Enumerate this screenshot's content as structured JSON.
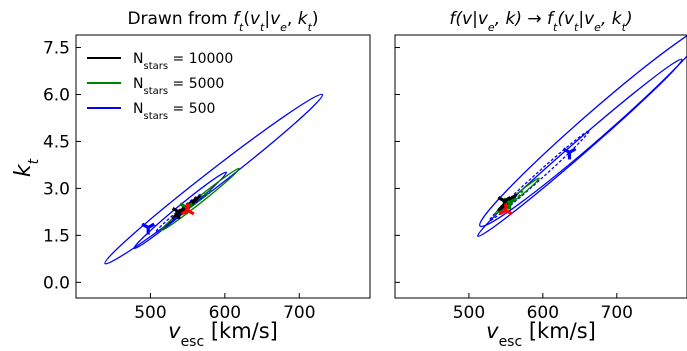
{
  "chart_data": [
    {
      "type": "contour",
      "title": "Drawn from f_t(v_t|v_e, k_t)",
      "title_parts": {
        "prefix": "Drawn from ",
        "f": "f",
        "f_sub": "t",
        "args_open": "(",
        "v": "v",
        "v_sub": "t",
        "bar": "|",
        "ve": "v",
        "ve_sub": "e",
        "comma": ", ",
        "k": "k",
        "k_sub": "t",
        "args_close": ")"
      },
      "xlabel": "v_esc [km/s]",
      "ylabel": "k_t",
      "xlim": [
        400,
        795
      ],
      "ylim": [
        -0.5,
        7.9
      ],
      "xticks": [
        500,
        600,
        700
      ],
      "yticks": [
        0.0,
        1.5,
        3.0,
        4.5,
        6.0,
        7.5
      ],
      "legend": {
        "position": "top-left",
        "entries": [
          {
            "label_main": "N",
            "label_sub": "stars",
            "label_rest": " = 10000",
            "color": "#000000"
          },
          {
            "label_main": "N",
            "label_sub": "stars",
            "label_rest": " = 5000",
            "color": "#008000"
          },
          {
            "label_main": "N",
            "label_sub": "stars",
            "label_rest": " = 500",
            "color": "#0000ff"
          }
        ]
      },
      "series": [
        {
          "name": "N_stars = 500",
          "color": "#0000ff",
          "contours": [
            {
              "center": [
                585,
                3.3
              ],
              "tip_lo": [
                440,
                0.6
              ],
              "tip_hi": [
                732,
                6.0
              ],
              "half_width": 0.34
            },
            {
              "center": [
                540,
                2.3
              ],
              "tip_lo": [
                488,
                1.22
              ],
              "tip_hi": [
                612,
                3.65
              ],
              "half_width": 0.17
            },
            {
              "center": [
                537,
                2.2
              ],
              "tip_lo": [
                507,
                1.6
              ],
              "tip_hi": [
                567,
                2.8
              ],
              "half_width": 0.08
            }
          ],
          "best_fit": [
            497,
            1.75
          ],
          "true_marker": null
        },
        {
          "name": "N_stars = 5000",
          "color": "#008000",
          "contours": [
            {
              "center": [
                567,
                2.65
              ],
              "tip_lo": [
                515,
                1.72
              ],
              "tip_hi": [
                620,
                3.7
              ],
              "half_width": 0.12
            },
            {
              "center": [
                560,
                2.55
              ],
              "tip_lo": [
                538,
                2.15
              ],
              "tip_hi": [
                583,
                2.95
              ],
              "half_width": 0.05
            }
          ],
          "best_fit": [
            548,
            2.4
          ],
          "true_marker": null
        },
        {
          "name": "N_stars = 10000",
          "color": "#000000",
          "contours": [
            {
              "center": [
                548,
                2.4
              ],
              "tip_lo": [
                530,
                2.05
              ],
              "tip_hi": [
                567,
                2.75
              ],
              "half_width": 0.035
            }
          ],
          "best_fit": [
            538,
            2.25
          ],
          "true_marker": null
        },
        {
          "name": "",
          "color": "#ff0000",
          "contours": [],
          "best_fit": null,
          "true_marker": [
            550,
            2.3
          ]
        }
      ]
    },
    {
      "type": "contour",
      "title": "f(v|v_e, k) → f_t(v_t|v_e, k_t)",
      "title_parts": {
        "f": "f",
        "open": "(v|v",
        "sub_e": "e",
        "mid": ", k) → f",
        "sub_t": "t",
        "open2": "(v",
        "sub_t2": "t",
        "bar2": "|v",
        "sub_e2": "e",
        "mid2": ", k",
        "sub_t3": "t",
        "close": ")"
      },
      "xlabel": "v_esc [km/s]",
      "ylabel": "",
      "xlim": [
        400,
        795
      ],
      "ylim": [
        -0.5,
        7.9
      ],
      "xticks": [
        500,
        600,
        700
      ],
      "yticks": [
        0.0,
        1.5,
        3.0,
        4.5,
        6.0,
        7.5
      ],
      "series": [
        {
          "name": "N_stars = 500",
          "color": "#0000ff",
          "contours": [
            {
              "center": [
                670,
                5.0
              ],
              "tip_lo": [
                520,
                1.9
              ],
              "tip_hi": [
                830,
                8.3
              ],
              "half_width": 0.55
            },
            {
              "center": [
                650,
                4.3
              ],
              "tip_lo": [
                524,
                1.95
              ],
              "tip_hi": [
                800,
                7.6
              ],
              "half_width": 0.3
            },
            {
              "center": [
                595,
                3.4
              ],
              "tip_lo": [
                528,
                2.0
              ],
              "tip_hi": [
                662,
                4.85
              ],
              "half_width": 0.15
            }
          ],
          "best_fit": [
            636,
            4.15
          ],
          "true_marker": null
        },
        {
          "name": "N_stars = 5000",
          "color": "#008000",
          "contours": [
            {
              "center": [
                565,
                2.75
              ],
              "tip_lo": [
                538,
                2.2
              ],
              "tip_hi": [
                598,
                3.35
              ],
              "half_width": 0.08
            },
            {
              "center": [
                562,
                2.7
              ],
              "tip_lo": [
                552,
                2.5
              ],
              "tip_hi": [
                574,
                2.95
              ],
              "half_width": 0.03
            }
          ],
          "best_fit": [
            555,
            2.55
          ],
          "true_marker": null
        },
        {
          "name": "N_stars = 10000",
          "color": "#000000",
          "contours": [
            {
              "center": [
                552,
                2.55
              ],
              "tip_lo": [
                540,
                2.3
              ],
              "tip_hi": [
                565,
                2.8
              ],
              "half_width": 0.025
            }
          ],
          "best_fit": [
            548,
            2.6
          ],
          "true_marker": null
        },
        {
          "name": "",
          "color": "#ff0000",
          "contours": [],
          "best_fit": null,
          "true_marker": [
            550,
            2.3
          ]
        }
      ]
    }
  ]
}
